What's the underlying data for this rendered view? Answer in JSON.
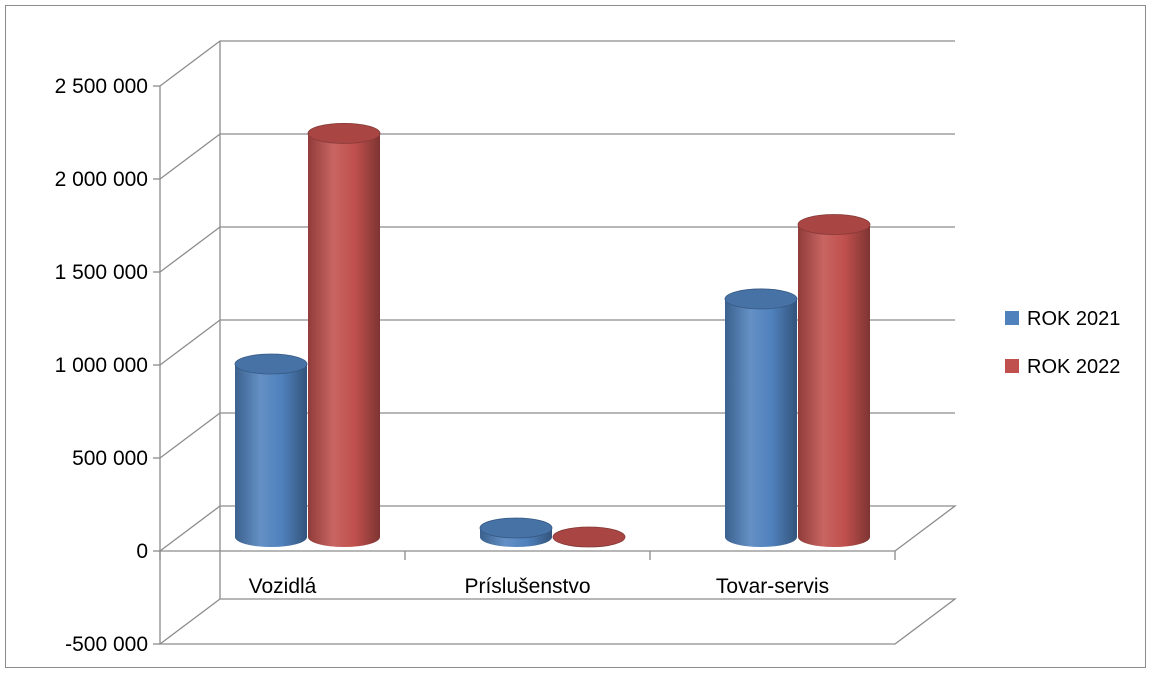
{
  "chart_data": {
    "type": "bar",
    "style": "3d-cylinder",
    "categories": [
      "Vozidlá",
      "Príslušenstvo",
      "Tovar-servis"
    ],
    "series": [
      {
        "name": "ROK 2021",
        "color": "#4F81BD",
        "values": [
          930000,
          70000,
          1280000
        ]
      },
      {
        "name": "ROK 2022",
        "color": "#C0504D",
        "values": [
          2170000,
          10000,
          1680000
        ]
      }
    ],
    "yticks": [
      -500000,
      0,
      500000,
      1000000,
      1500000,
      2000000,
      2500000
    ],
    "ytick_labels": [
      "-500 000",
      "0",
      "500 000",
      "1 000 000",
      "1 500 000",
      "2 000 000",
      "2 500 000"
    ],
    "ylim": [
      -500000,
      2500000
    ],
    "grid": true,
    "legend": "right"
  }
}
